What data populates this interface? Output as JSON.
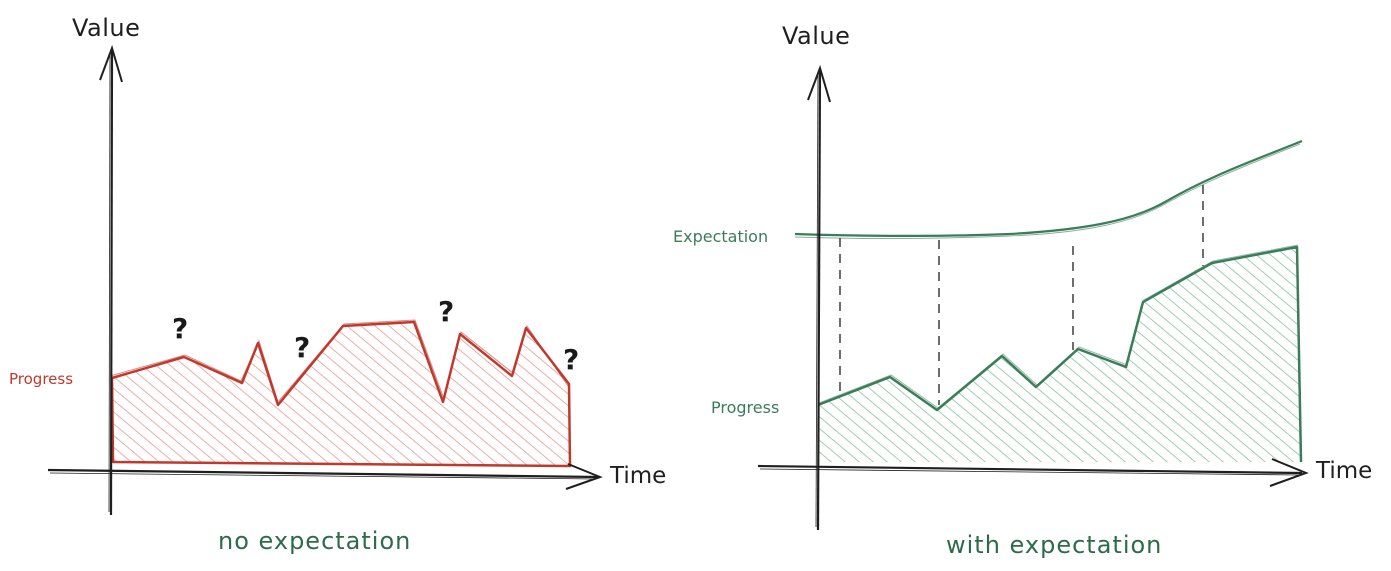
{
  "left_panel": {
    "y_axis_label": "Value",
    "x_axis_label": "Time",
    "series_label": "Progress",
    "question_mark": "?",
    "caption": "no expectation",
    "color": "#c0392b",
    "fill_color": "#e5a29e"
  },
  "right_panel": {
    "y_axis_label": "Value",
    "x_axis_label": "Time",
    "series_label": "Progress",
    "expectation_label": "Expectation",
    "caption": "with expectation",
    "color": "#3a7d5a",
    "fill_color": "#8fc7a3"
  }
}
